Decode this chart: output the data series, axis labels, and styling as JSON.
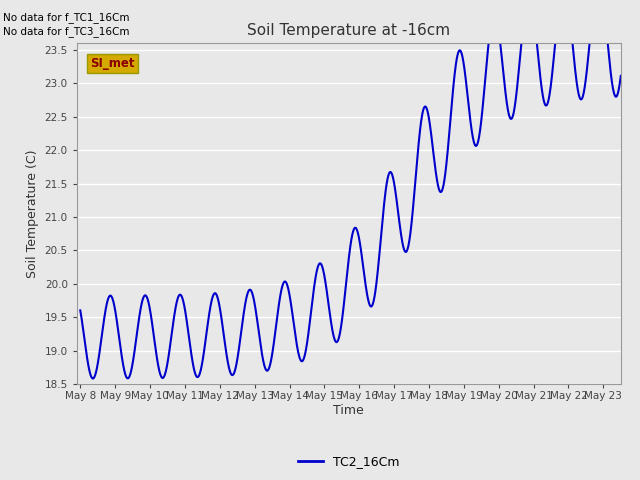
{
  "title": "Soil Temperature at -16cm",
  "xlabel": "Time",
  "ylabel": "Soil Temperature (C)",
  "ylim": [
    18.5,
    23.6
  ],
  "xlim_days": [
    -0.1,
    15.5
  ],
  "x_tick_labels": [
    "May 8",
    "May 9",
    "May 10",
    "May 11",
    "May 12",
    "May 13",
    "May 14",
    "May 15",
    "May 16",
    "May 17",
    "May 18",
    "May 19",
    "May 20",
    "May 21",
    "May 22",
    "May 23"
  ],
  "yticks": [
    18.5,
    19.0,
    19.5,
    20.0,
    20.5,
    21.0,
    21.5,
    22.0,
    22.5,
    23.0,
    23.5
  ],
  "line_color": "#0000cc",
  "line_width": 1.5,
  "bg_color": "#e8e8e8",
  "plot_bg_color": "#e8e8e8",
  "grid_color": "#ffffff",
  "annotation_text1": "No data for f_TC1_16Cm",
  "annotation_text2": "No data for f_TC3_16Cm",
  "legend_label": "TC2_16Cm",
  "legend_line_color": "#0000cc",
  "si_met_bg": "#d4aa00",
  "si_met_text": "#8b0000",
  "si_met_label": "SI_met"
}
